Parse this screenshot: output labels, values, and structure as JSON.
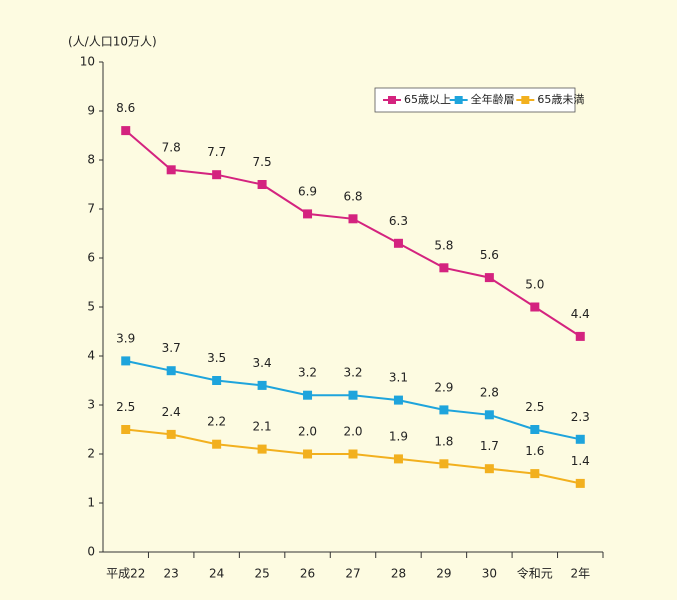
{
  "chart_data": {
    "type": "line",
    "y_label": "(人/人口10万人)",
    "categories": [
      "平成22",
      "23",
      "24",
      "25",
      "26",
      "27",
      "28",
      "29",
      "30",
      "令和元",
      "2年"
    ],
    "series": [
      {
        "name": "65歳以上",
        "color": "#d4237f",
        "values": [
          8.6,
          7.8,
          7.7,
          7.5,
          6.9,
          6.8,
          6.3,
          5.8,
          5.6,
          5.0,
          4.4
        ],
        "value_labels": [
          "8.6",
          "7.8",
          "7.7",
          "7.5",
          "6.9",
          "6.8",
          "6.3",
          "5.8",
          "5.6",
          "5.0",
          "4.4"
        ]
      },
      {
        "name": "全年齢層",
        "color": "#1ea4dc",
        "values": [
          3.9,
          3.7,
          3.5,
          3.4,
          3.2,
          3.2,
          3.1,
          2.9,
          2.8,
          2.5,
          2.3
        ],
        "value_labels": [
          "3.9",
          "3.7",
          "3.5",
          "3.4",
          "3.2",
          "3.2",
          "3.1",
          "2.9",
          "2.8",
          "2.5",
          "2.3"
        ]
      },
      {
        "name": "65歳未満",
        "color": "#f2b01e",
        "values": [
          2.5,
          2.4,
          2.2,
          2.1,
          2.0,
          2.0,
          1.9,
          1.8,
          1.7,
          1.6,
          1.4
        ],
        "value_labels": [
          "2.5",
          "2.4",
          "2.2",
          "2.1",
          "2.0",
          "2.0",
          "1.9",
          "1.8",
          "1.7",
          "1.6",
          "1.4"
        ]
      }
    ],
    "ylim": [
      0,
      10
    ],
    "yticks": [
      0,
      1,
      2,
      3,
      4,
      5,
      6,
      7,
      8,
      9,
      10
    ],
    "legend": "top-right"
  }
}
